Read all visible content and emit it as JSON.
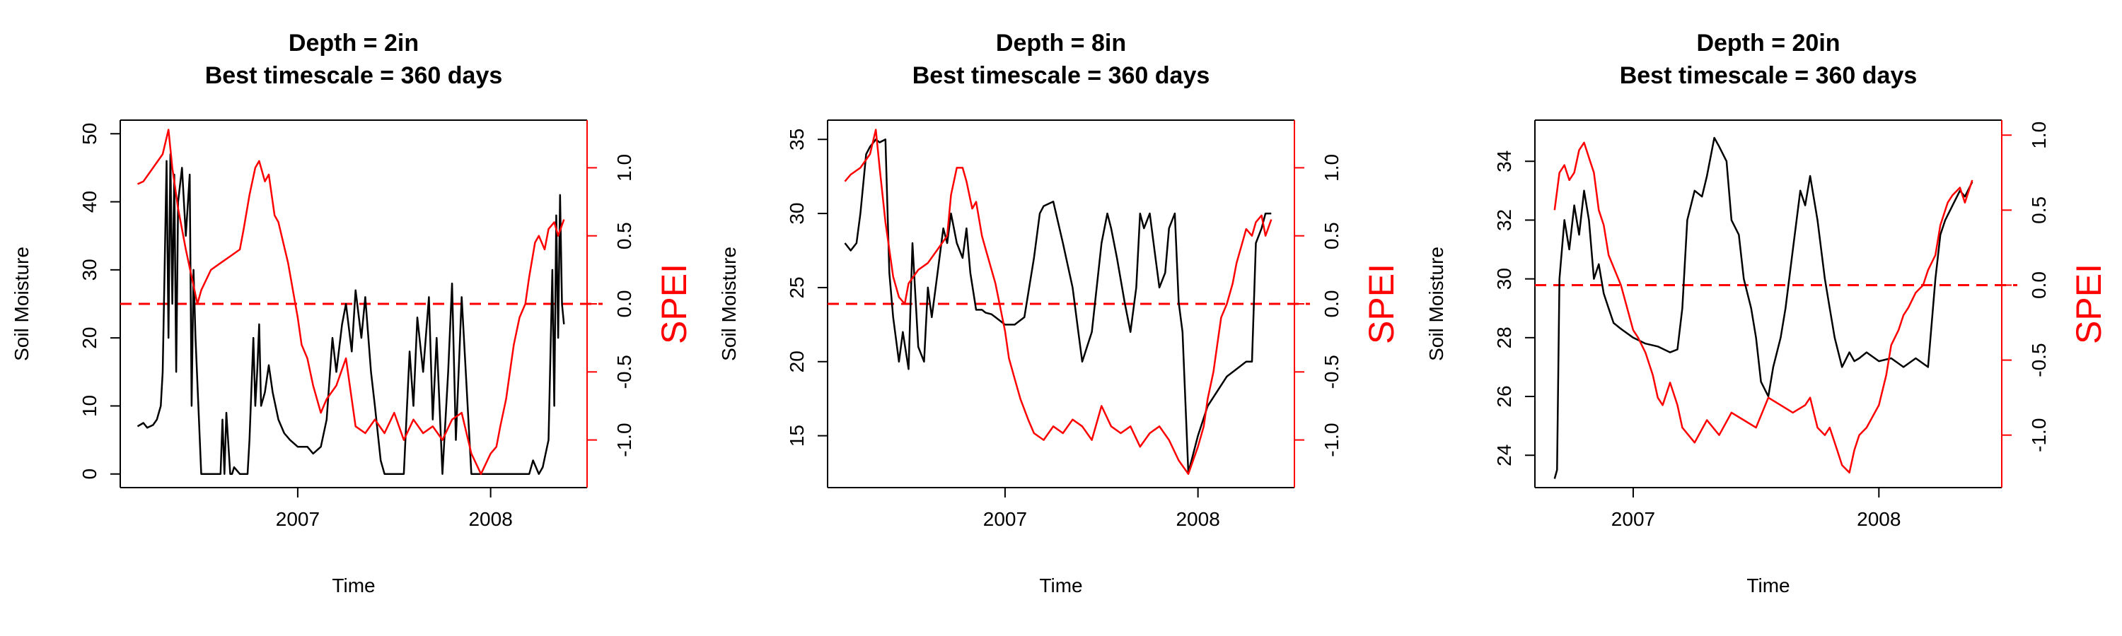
{
  "colors": {
    "soil_moisture": "#000000",
    "spei": "#ff0000",
    "axis": "#000000",
    "reference_line": "#ff0000"
  },
  "chart_data": [
    {
      "type": "line",
      "title": "Depth = 2in",
      "subtitle": "Best timescale = 360 days",
      "xlabel": "Time",
      "ylabel": "Soil Moisture",
      "ylabel_right": "SPEI",
      "xlim": [
        2006.08,
        2008.5
      ],
      "ylim": [
        -2,
        52
      ],
      "ylim_right": [
        -1.35,
        1.35
      ],
      "x_ticks": [
        2007,
        2008
      ],
      "x_tick_labels": [
        "2007",
        "2008"
      ],
      "y_ticks": [
        0,
        10,
        20,
        30,
        40,
        50
      ],
      "y_tick_labels": [
        "0",
        "10",
        "20",
        "30",
        "40",
        "50"
      ],
      "y_ticks_right": [
        -1.0,
        -0.5,
        0.0,
        0.5,
        1.0
      ],
      "y_tick_labels_right": [
        "-1.0",
        "-0.5",
        "0.0",
        "0.5",
        "1.0"
      ],
      "reference_line_spei": 0.0,
      "grid": false,
      "series": [
        {
          "axis": "left",
          "color": "#000000",
          "x": [
            2006.17,
            2006.2,
            2006.22,
            2006.25,
            2006.27,
            2006.29,
            2006.3,
            2006.31,
            2006.32,
            2006.33,
            2006.34,
            2006.35,
            2006.36,
            2006.37,
            2006.38,
            2006.4,
            2006.42,
            2006.44,
            2006.45,
            2006.46,
            2006.47,
            2006.5,
            2006.55,
            2006.6,
            2006.61,
            2006.62,
            2006.63,
            2006.65,
            2006.66,
            2006.67,
            2006.7,
            2006.72,
            2006.74,
            2006.75,
            2006.77,
            2006.78,
            2006.79,
            2006.8,
            2006.81,
            2006.83,
            2006.85,
            2006.87,
            2006.9,
            2006.93,
            2006.96,
            2007.0,
            2007.05,
            2007.08,
            2007.12,
            2007.15,
            2007.18,
            2007.2,
            2007.23,
            2007.25,
            2007.28,
            2007.3,
            2007.33,
            2007.35,
            2007.38,
            2007.4,
            2007.43,
            2007.45,
            2007.5,
            2007.55,
            2007.58,
            2007.6,
            2007.62,
            2007.65,
            2007.68,
            2007.7,
            2007.72,
            2007.75,
            2007.78,
            2007.8,
            2007.82,
            2007.85,
            2007.9,
            2007.95,
            2008.0,
            2008.05,
            2008.1,
            2008.15,
            2008.2,
            2008.22,
            2008.25,
            2008.27,
            2008.3,
            2008.32,
            2008.33,
            2008.34,
            2008.35,
            2008.36,
            2008.37,
            2008.38
          ],
          "y": [
            7,
            7.5,
            6.8,
            7.2,
            8,
            10,
            15,
            30,
            46,
            20,
            47,
            25,
            44,
            15,
            40,
            45,
            35,
            44,
            10,
            30,
            20,
            0,
            0,
            0,
            8,
            0,
            9,
            0,
            0,
            1,
            0,
            0,
            0,
            5,
            20,
            10,
            15,
            22,
            10,
            12,
            16,
            12,
            8,
            6,
            5,
            4,
            4,
            3,
            4,
            8,
            20,
            15,
            22,
            25,
            18,
            27,
            20,
            26,
            15,
            10,
            2,
            0,
            0,
            0,
            18,
            10,
            23,
            15,
            26,
            8,
            20,
            0,
            15,
            28,
            5,
            26,
            0,
            0,
            0,
            0,
            0,
            0,
            0,
            2,
            0,
            1,
            5,
            30,
            10,
            38,
            20,
            41,
            25,
            22
          ]
        },
        {
          "axis": "right",
          "color": "#ff0000",
          "x": [
            2006.17,
            2006.2,
            2006.25,
            2006.3,
            2006.33,
            2006.35,
            2006.38,
            2006.4,
            2006.42,
            2006.45,
            2006.48,
            2006.5,
            2006.55,
            2006.6,
            2006.65,
            2006.7,
            2006.72,
            2006.75,
            2006.78,
            2006.8,
            2006.83,
            2006.85,
            2006.88,
            2006.9,
            2006.95,
            2007.0,
            2007.02,
            2007.05,
            2007.08,
            2007.12,
            2007.15,
            2007.2,
            2007.25,
            2007.3,
            2007.35,
            2007.4,
            2007.45,
            2007.5,
            2007.55,
            2007.6,
            2007.65,
            2007.7,
            2007.75,
            2007.8,
            2007.85,
            2007.9,
            2007.95,
            2008.0,
            2008.03,
            2008.05,
            2008.08,
            2008.1,
            2008.12,
            2008.15,
            2008.18,
            2008.2,
            2008.23,
            2008.25,
            2008.28,
            2008.3,
            2008.33,
            2008.35,
            2008.38
          ],
          "y": [
            0.88,
            0.9,
            1.0,
            1.1,
            1.28,
            1.0,
            0.7,
            0.55,
            0.4,
            0.2,
            0.0,
            0.1,
            0.25,
            0.3,
            0.35,
            0.4,
            0.55,
            0.8,
            1.0,
            1.05,
            0.9,
            0.95,
            0.65,
            0.6,
            0.3,
            -0.1,
            -0.3,
            -0.4,
            -0.6,
            -0.8,
            -0.7,
            -0.6,
            -0.4,
            -0.9,
            -0.95,
            -0.85,
            -0.95,
            -0.8,
            -1.0,
            -0.85,
            -0.95,
            -0.9,
            -1.0,
            -0.85,
            -0.8,
            -1.1,
            -1.25,
            -1.1,
            -1.05,
            -0.9,
            -0.7,
            -0.5,
            -0.3,
            -0.1,
            0.0,
            0.2,
            0.45,
            0.5,
            0.4,
            0.55,
            0.6,
            0.5,
            0.62
          ]
        }
      ]
    },
    {
      "type": "line",
      "title": "Depth = 8in",
      "subtitle": "Best timescale = 360 days",
      "xlabel": "Time",
      "ylabel": "Soil Moisture",
      "ylabel_right": "SPEI",
      "xlim": [
        2006.08,
        2008.5
      ],
      "ylim": [
        11.5,
        36.3
      ],
      "ylim_right": [
        -1.35,
        1.35
      ],
      "x_ticks": [
        2007,
        2008
      ],
      "x_tick_labels": [
        "2007",
        "2008"
      ],
      "y_ticks": [
        15,
        20,
        25,
        30,
        35
      ],
      "y_tick_labels": [
        "15",
        "20",
        "25",
        "30",
        "35"
      ],
      "y_ticks_right": [
        -1.0,
        -0.5,
        0.0,
        0.5,
        1.0
      ],
      "y_tick_labels_right": [
        "-1.0",
        "-0.5",
        "0.0",
        "0.5",
        "1.0"
      ],
      "reference_line_spei": 0.0,
      "grid": false,
      "series": [
        {
          "axis": "left",
          "color": "#000000",
          "x": [
            2006.17,
            2006.2,
            2006.23,
            2006.25,
            2006.28,
            2006.3,
            2006.33,
            2006.35,
            2006.38,
            2006.4,
            2006.42,
            2006.45,
            2006.47,
            2006.5,
            2006.52,
            2006.55,
            2006.58,
            2006.6,
            2006.62,
            2006.65,
            2006.68,
            2006.7,
            2006.72,
            2006.75,
            2006.78,
            2006.8,
            2006.82,
            2006.85,
            2006.88,
            2006.9,
            2006.93,
            2006.95,
            2007.0,
            2007.05,
            2007.1,
            2007.15,
            2007.18,
            2007.2,
            2007.25,
            2007.3,
            2007.35,
            2007.38,
            2007.4,
            2007.45,
            2007.5,
            2007.53,
            2007.55,
            2007.58,
            2007.62,
            2007.65,
            2007.68,
            2007.7,
            2007.72,
            2007.75,
            2007.78,
            2007.8,
            2007.83,
            2007.85,
            2007.88,
            2007.9,
            2007.92,
            2007.95,
            2008.0,
            2008.05,
            2008.1,
            2008.15,
            2008.2,
            2008.25,
            2008.28,
            2008.3,
            2008.33,
            2008.35,
            2008.38
          ],
          "y": [
            28,
            27.5,
            28,
            30,
            34,
            34.5,
            35,
            34.8,
            35,
            26,
            23,
            20,
            22,
            19.5,
            28,
            21,
            20,
            25,
            23,
            26,
            29,
            28,
            30,
            28,
            27,
            29,
            26,
            23.5,
            23.5,
            23.3,
            23.2,
            23,
            22.5,
            22.5,
            23,
            27,
            30,
            30.5,
            30.8,
            28,
            25,
            22,
            20,
            22,
            28,
            30,
            29,
            27,
            24,
            22,
            25,
            30,
            29,
            30,
            27,
            25,
            26,
            29,
            30,
            24,
            22,
            12.5,
            15,
            17,
            18,
            19,
            19.5,
            20,
            20,
            28,
            29,
            30,
            30
          ]
        },
        {
          "axis": "right",
          "color": "#ff0000",
          "x": [
            2006.17,
            2006.2,
            2006.25,
            2006.3,
            2006.33,
            2006.35,
            2006.38,
            2006.4,
            2006.42,
            2006.45,
            2006.48,
            2006.5,
            2006.55,
            2006.6,
            2006.65,
            2006.7,
            2006.72,
            2006.75,
            2006.78,
            2006.8,
            2006.83,
            2006.85,
            2006.88,
            2006.9,
            2006.95,
            2007.0,
            2007.02,
            2007.05,
            2007.08,
            2007.12,
            2007.15,
            2007.2,
            2007.25,
            2007.3,
            2007.35,
            2007.4,
            2007.45,
            2007.5,
            2007.55,
            2007.6,
            2007.65,
            2007.7,
            2007.75,
            2007.8,
            2007.85,
            2007.9,
            2007.95,
            2008.0,
            2008.03,
            2008.05,
            2008.08,
            2008.1,
            2008.12,
            2008.15,
            2008.18,
            2008.2,
            2008.23,
            2008.25,
            2008.28,
            2008.3,
            2008.33,
            2008.35,
            2008.38
          ],
          "y": [
            0.9,
            0.95,
            1.0,
            1.1,
            1.28,
            1.0,
            0.6,
            0.4,
            0.2,
            0.05,
            0.0,
            0.15,
            0.25,
            0.3,
            0.4,
            0.5,
            0.8,
            1.0,
            1.0,
            0.9,
            0.7,
            0.75,
            0.5,
            0.4,
            0.15,
            -0.2,
            -0.4,
            -0.55,
            -0.7,
            -0.85,
            -0.95,
            -1.0,
            -0.9,
            -0.95,
            -0.85,
            -0.9,
            -1.0,
            -0.75,
            -0.9,
            -0.95,
            -0.9,
            -1.05,
            -0.95,
            -0.9,
            -1.0,
            -1.15,
            -1.25,
            -1.05,
            -0.9,
            -0.7,
            -0.5,
            -0.3,
            -0.1,
            0.0,
            0.15,
            0.3,
            0.45,
            0.55,
            0.5,
            0.6,
            0.65,
            0.5,
            0.62
          ]
        }
      ]
    },
    {
      "type": "line",
      "title": "Depth = 20in",
      "subtitle": "Best timescale = 360 days",
      "xlabel": "Time",
      "ylabel": "Soil Moisture",
      "ylabel_right": "SPEI",
      "xlim": [
        2006.6,
        2008.5
      ],
      "ylim": [
        22.9,
        35.4
      ],
      "ylim_right": [
        -1.35,
        1.1
      ],
      "x_ticks": [
        2007,
        2008
      ],
      "x_tick_labels": [
        "2007",
        "2008"
      ],
      "y_ticks": [
        24,
        26,
        28,
        30,
        32,
        34
      ],
      "y_tick_labels": [
        "24",
        "26",
        "28",
        "30",
        "32",
        "34"
      ],
      "y_ticks_right": [
        -1.0,
        -0.5,
        0.0,
        0.5,
        1.0
      ],
      "y_tick_labels_right": [
        "-1.0",
        "-0.5",
        "0.0",
        "0.5",
        "1.0"
      ],
      "reference_line_spei": 0.0,
      "grid": false,
      "series": [
        {
          "axis": "left",
          "color": "#000000",
          "x": [
            2006.68,
            2006.69,
            2006.7,
            2006.72,
            2006.74,
            2006.76,
            2006.78,
            2006.8,
            2006.82,
            2006.84,
            2006.86,
            2006.88,
            2006.9,
            2006.92,
            2006.95,
            2007.0,
            2007.05,
            2007.1,
            2007.15,
            2007.18,
            2007.2,
            2007.22,
            2007.25,
            2007.28,
            2007.3,
            2007.33,
            2007.35,
            2007.38,
            2007.4,
            2007.43,
            2007.45,
            2007.48,
            2007.5,
            2007.52,
            2007.55,
            2007.57,
            2007.6,
            2007.62,
            2007.65,
            2007.68,
            2007.7,
            2007.72,
            2007.75,
            2007.78,
            2007.8,
            2007.82,
            2007.85,
            2007.88,
            2007.9,
            2007.92,
            2007.95,
            2008.0,
            2008.05,
            2008.1,
            2008.15,
            2008.2,
            2008.23,
            2008.25,
            2008.27,
            2008.3,
            2008.33,
            2008.35,
            2008.38
          ],
          "y": [
            23.2,
            23.5,
            30,
            32,
            31,
            32.5,
            31.5,
            33,
            32,
            30,
            30.5,
            29.5,
            29,
            28.5,
            28.3,
            28,
            27.8,
            27.7,
            27.5,
            27.6,
            29,
            32,
            33,
            32.8,
            33.5,
            34.8,
            34.5,
            34,
            32,
            31.5,
            30,
            29,
            28,
            26.5,
            26,
            27,
            28,
            29,
            31,
            33,
            32.5,
            33.5,
            32,
            30,
            29,
            28,
            27,
            27.5,
            27.2,
            27.3,
            27.5,
            27.2,
            27.3,
            27,
            27.3,
            27,
            30,
            31.5,
            32,
            32.5,
            33,
            32.8,
            33.3
          ]
        },
        {
          "axis": "right",
          "color": "#ff0000",
          "x": [
            2006.68,
            2006.7,
            2006.72,
            2006.74,
            2006.76,
            2006.78,
            2006.8,
            2006.82,
            2006.84,
            2006.86,
            2006.88,
            2006.9,
            2006.95,
            2007.0,
            2007.02,
            2007.05,
            2007.08,
            2007.1,
            2007.12,
            2007.15,
            2007.18,
            2007.2,
            2007.25,
            2007.3,
            2007.35,
            2007.4,
            2007.45,
            2007.5,
            2007.55,
            2007.6,
            2007.65,
            2007.7,
            2007.72,
            2007.75,
            2007.78,
            2007.8,
            2007.83,
            2007.85,
            2007.88,
            2007.9,
            2007.92,
            2007.95,
            2008.0,
            2008.03,
            2008.05,
            2008.08,
            2008.1,
            2008.12,
            2008.15,
            2008.18,
            2008.2,
            2008.23,
            2008.25,
            2008.28,
            2008.3,
            2008.33,
            2008.35,
            2008.38
          ],
          "y": [
            0.5,
            0.75,
            0.8,
            0.7,
            0.75,
            0.9,
            0.95,
            0.85,
            0.75,
            0.5,
            0.4,
            0.2,
            0.0,
            -0.3,
            -0.35,
            -0.45,
            -0.6,
            -0.75,
            -0.8,
            -0.65,
            -0.8,
            -0.95,
            -1.05,
            -0.9,
            -1.0,
            -0.85,
            -0.9,
            -0.95,
            -0.75,
            -0.8,
            -0.85,
            -0.8,
            -0.75,
            -0.95,
            -1.0,
            -0.95,
            -1.1,
            -1.2,
            -1.25,
            -1.1,
            -1.0,
            -0.95,
            -0.8,
            -0.6,
            -0.4,
            -0.3,
            -0.2,
            -0.15,
            -0.05,
            0.0,
            0.1,
            0.2,
            0.4,
            0.55,
            0.6,
            0.65,
            0.55,
            0.7
          ]
        }
      ]
    }
  ]
}
